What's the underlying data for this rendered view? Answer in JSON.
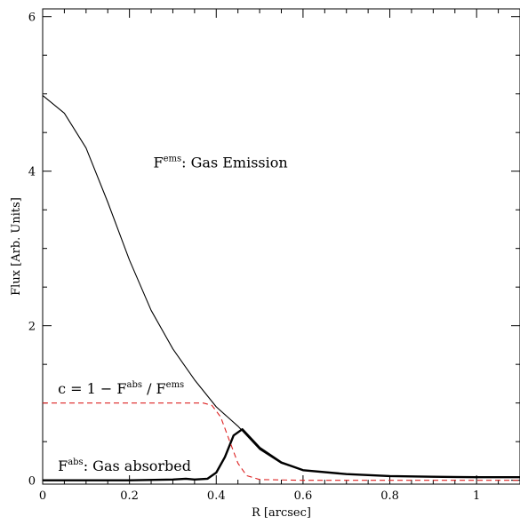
{
  "chart_data": {
    "type": "line",
    "xlabel": "R [arcsec]",
    "ylabel": "Flux [Arb. Units]",
    "xlim": [
      0,
      1.1
    ],
    "ylim": [
      -0.05,
      6.1
    ],
    "x_ticks": [
      0,
      0.2,
      0.4,
      0.6,
      0.8,
      1
    ],
    "x_tick_labels": [
      "0",
      "0.2",
      "0.4",
      "0.6",
      "0.8",
      "1"
    ],
    "y_ticks": [
      0,
      2,
      4,
      6
    ],
    "y_tick_labels": [
      "0",
      "2",
      "4",
      "6"
    ],
    "grid": false,
    "legend": "none",
    "series": [
      {
        "style": "solid-thin",
        "color": "#000000",
        "x": [
          0,
          0.05,
          0.1,
          0.15,
          0.2,
          0.25,
          0.3,
          0.35,
          0.4,
          0.45,
          0.5,
          0.55,
          0.6,
          0.7,
          0.8,
          0.9,
          1.0,
          1.1
        ],
        "y": [
          4.98,
          4.75,
          4.3,
          3.6,
          2.85,
          2.2,
          1.7,
          1.3,
          0.95,
          0.7,
          0.4,
          0.22,
          0.13,
          0.08,
          0.055,
          0.045,
          0.04,
          0.04
        ]
      },
      {
        "style": "solid-thick",
        "color": "#000000",
        "x": [
          0,
          0.2,
          0.3,
          0.33,
          0.35,
          0.38,
          0.4,
          0.42,
          0.44,
          0.46,
          0.5,
          0.55,
          0.6,
          0.7,
          0.8,
          0.9,
          1.0,
          1.1
        ],
        "y": [
          0,
          0,
          0.01,
          0.02,
          0.01,
          0.02,
          0.1,
          0.3,
          0.58,
          0.66,
          0.42,
          0.23,
          0.13,
          0.08,
          0.055,
          0.045,
          0.04,
          0.04
        ]
      },
      {
        "style": "dashed",
        "color": "#dd2222",
        "x": [
          0,
          0.3,
          0.37,
          0.39,
          0.41,
          0.43,
          0.45,
          0.47,
          0.5,
          0.6,
          0.8,
          1.0,
          1.1
        ],
        "y": [
          1,
          1,
          1,
          0.97,
          0.82,
          0.52,
          0.22,
          0.06,
          0.01,
          0.0,
          0.0,
          0.0,
          0.0
        ]
      }
    ],
    "annotations": [
      {
        "x": 0.255,
        "y": 4.05,
        "base": "F",
        "sup": "ems",
        "text": ": Gas Emission"
      },
      {
        "x": 0.035,
        "y": 1.12,
        "base": "c = 1 − F",
        "sup": "abs",
        "mid": " / F",
        "sup2": "ems"
      },
      {
        "x": 0.035,
        "y": 0.12,
        "base": "F",
        "sup": "abs",
        "text": ": Gas absorbed"
      }
    ]
  }
}
